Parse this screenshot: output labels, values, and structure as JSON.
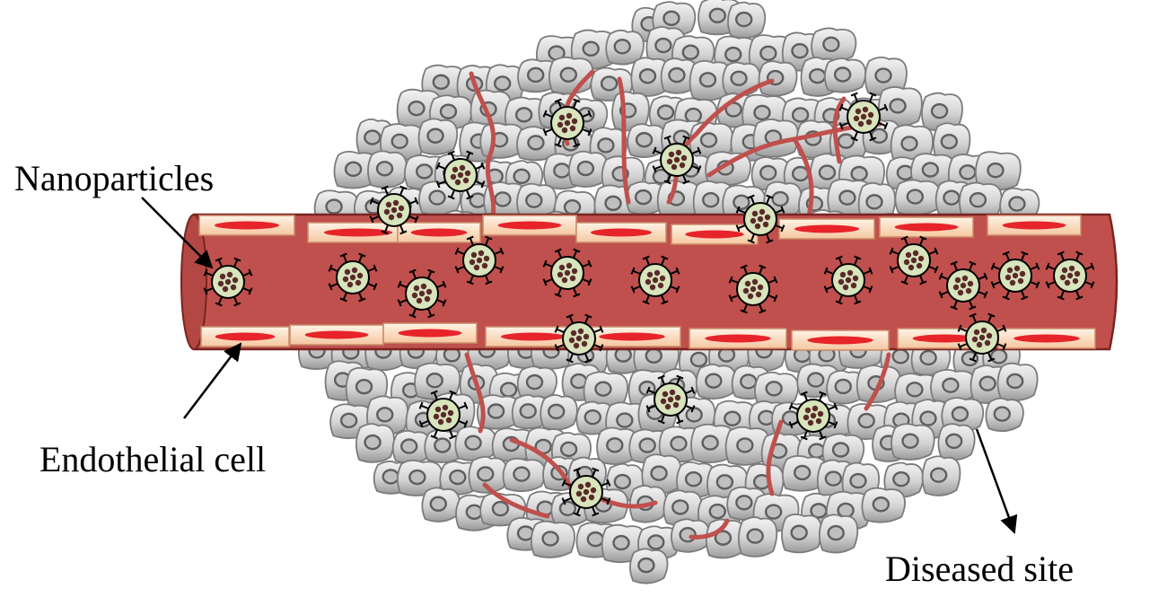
{
  "labels": {
    "nanoparticles": "Nanoparticles",
    "endothelial_cell": "Endothelial cell",
    "diseased_site": "Diseased site"
  },
  "colors": {
    "vessel_fill": "#c0504d",
    "vessel_stroke": "#7a2420",
    "cell_fill": "#d2d2d2",
    "cell_stroke": "#7b7b7b",
    "nucleus_fill": "#bfbfbf",
    "capillary": "#c0504d",
    "endothelial_fill": "#fde1c8",
    "endothelial_nucleus": "#e6242a",
    "nanoparticle_fill": "#d8e4bc",
    "nanoparticle_cargo": "#5a2a2a",
    "ink": "#000000"
  },
  "icons": {
    "nanoparticle": "nanoparticle-icon",
    "tissue_cell": "tissue-cell-icon",
    "endothelial_cell": "endothelial-cell-icon",
    "arrow": "arrow-icon"
  }
}
